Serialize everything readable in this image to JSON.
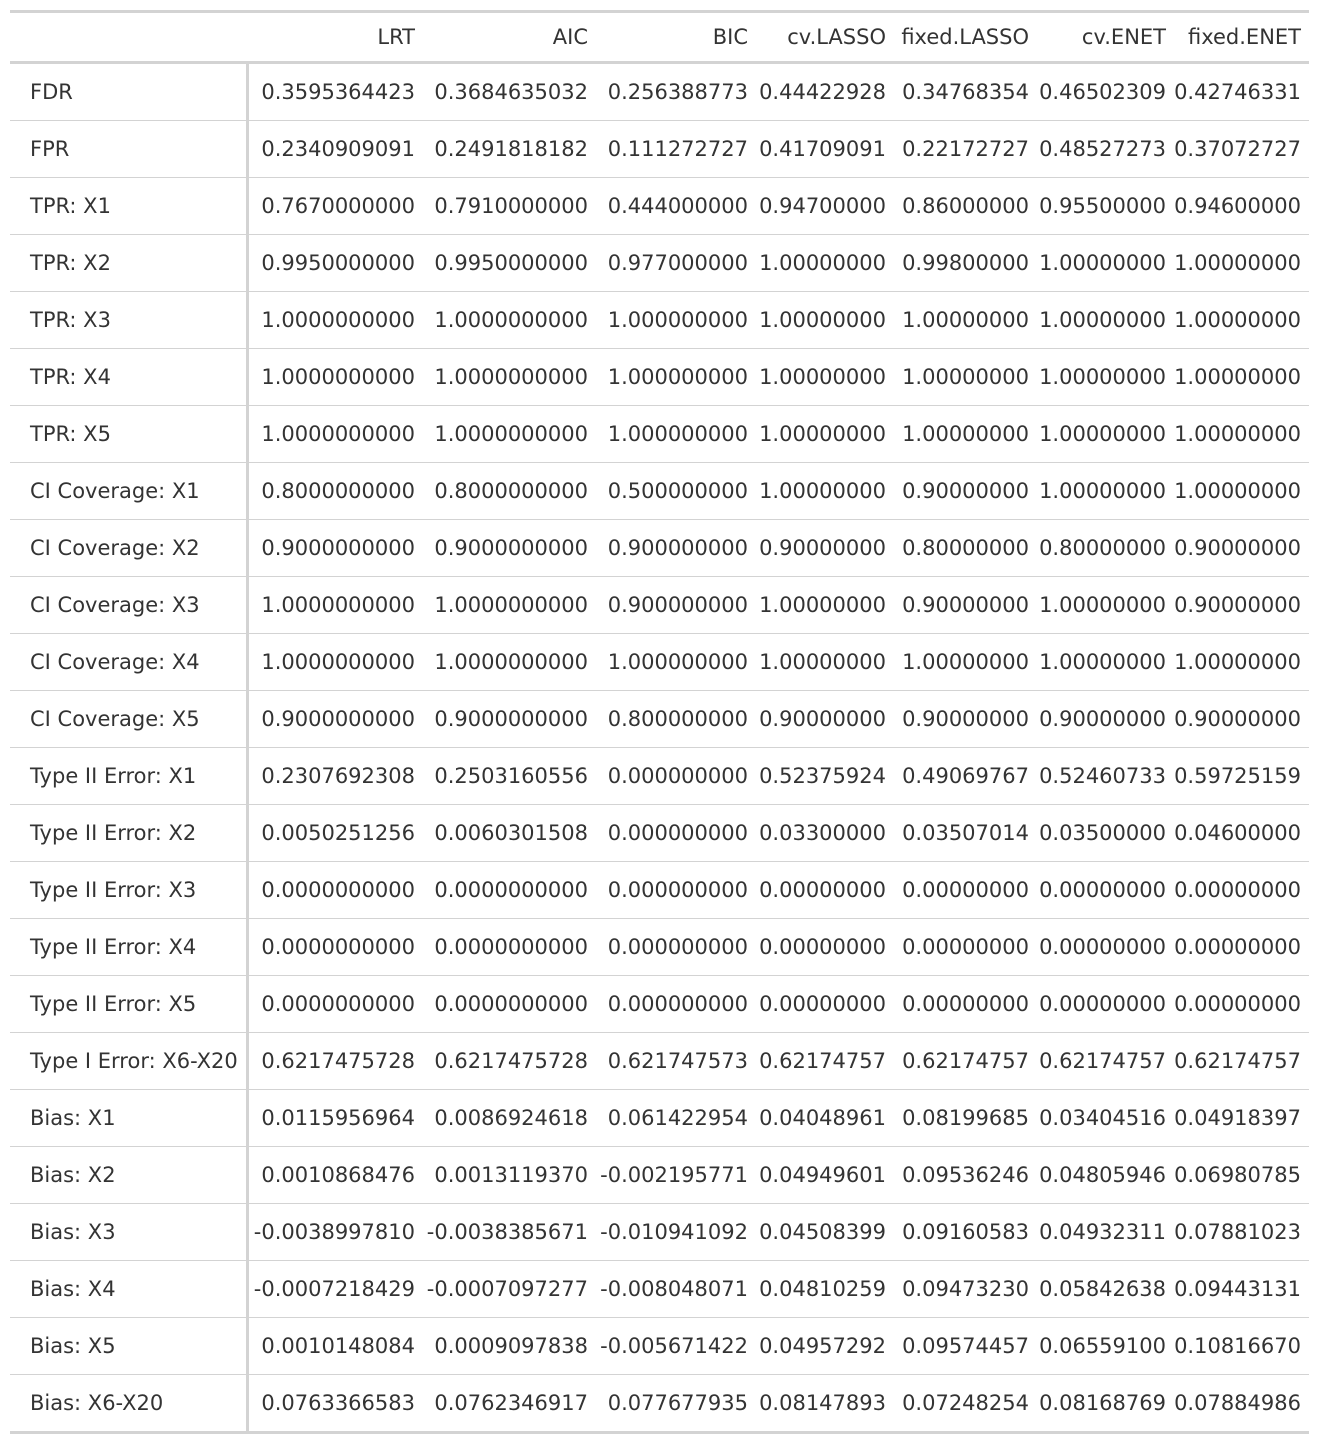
{
  "table": {
    "columns": [
      "",
      "LRT",
      "AIC",
      "BIC",
      "cv.LASSO",
      "fixed.LASSO",
      "cv.ENET",
      "fixed.ENET"
    ],
    "rows": [
      {
        "label": "FDR",
        "values": [
          "0.3595364423",
          "0.3684635032",
          "0.256388773",
          "0.44422928",
          "0.34768354",
          "0.46502309",
          "0.42746331"
        ]
      },
      {
        "label": "FPR",
        "values": [
          "0.2340909091",
          "0.2491818182",
          "0.111272727",
          "0.41709091",
          "0.22172727",
          "0.48527273",
          "0.37072727"
        ]
      },
      {
        "label": "TPR: X1",
        "values": [
          "0.7670000000",
          "0.7910000000",
          "0.444000000",
          "0.94700000",
          "0.86000000",
          "0.95500000",
          "0.94600000"
        ]
      },
      {
        "label": "TPR: X2",
        "values": [
          "0.9950000000",
          "0.9950000000",
          "0.977000000",
          "1.00000000",
          "0.99800000",
          "1.00000000",
          "1.00000000"
        ]
      },
      {
        "label": "TPR: X3",
        "values": [
          "1.0000000000",
          "1.0000000000",
          "1.000000000",
          "1.00000000",
          "1.00000000",
          "1.00000000",
          "1.00000000"
        ]
      },
      {
        "label": "TPR: X4",
        "values": [
          "1.0000000000",
          "1.0000000000",
          "1.000000000",
          "1.00000000",
          "1.00000000",
          "1.00000000",
          "1.00000000"
        ]
      },
      {
        "label": "TPR: X5",
        "values": [
          "1.0000000000",
          "1.0000000000",
          "1.000000000",
          "1.00000000",
          "1.00000000",
          "1.00000000",
          "1.00000000"
        ]
      },
      {
        "label": "CI Coverage: X1",
        "values": [
          "0.8000000000",
          "0.8000000000",
          "0.500000000",
          "1.00000000",
          "0.90000000",
          "1.00000000",
          "1.00000000"
        ]
      },
      {
        "label": "CI Coverage: X2",
        "values": [
          "0.9000000000",
          "0.9000000000",
          "0.900000000",
          "0.90000000",
          "0.80000000",
          "0.80000000",
          "0.90000000"
        ]
      },
      {
        "label": "CI Coverage: X3",
        "values": [
          "1.0000000000",
          "1.0000000000",
          "0.900000000",
          "1.00000000",
          "0.90000000",
          "1.00000000",
          "0.90000000"
        ]
      },
      {
        "label": "CI Coverage: X4",
        "values": [
          "1.0000000000",
          "1.0000000000",
          "1.000000000",
          "1.00000000",
          "1.00000000",
          "1.00000000",
          "1.00000000"
        ]
      },
      {
        "label": "CI Coverage: X5",
        "values": [
          "0.9000000000",
          "0.9000000000",
          "0.800000000",
          "0.90000000",
          "0.90000000",
          "0.90000000",
          "0.90000000"
        ]
      },
      {
        "label": "Type II Error: X1",
        "values": [
          "0.2307692308",
          "0.2503160556",
          "0.000000000",
          "0.52375924",
          "0.49069767",
          "0.52460733",
          "0.59725159"
        ]
      },
      {
        "label": "Type II Error: X2",
        "values": [
          "0.0050251256",
          "0.0060301508",
          "0.000000000",
          "0.03300000",
          "0.03507014",
          "0.03500000",
          "0.04600000"
        ]
      },
      {
        "label": "Type II Error: X3",
        "values": [
          "0.0000000000",
          "0.0000000000",
          "0.000000000",
          "0.00000000",
          "0.00000000",
          "0.00000000",
          "0.00000000"
        ]
      },
      {
        "label": "Type II Error: X4",
        "values": [
          "0.0000000000",
          "0.0000000000",
          "0.000000000",
          "0.00000000",
          "0.00000000",
          "0.00000000",
          "0.00000000"
        ]
      },
      {
        "label": "Type II Error: X5",
        "values": [
          "0.0000000000",
          "0.0000000000",
          "0.000000000",
          "0.00000000",
          "0.00000000",
          "0.00000000",
          "0.00000000"
        ]
      },
      {
        "label": "Type I Error: X6-X20",
        "values": [
          "0.6217475728",
          "0.6217475728",
          "0.621747573",
          "0.62174757",
          "0.62174757",
          "0.62174757",
          "0.62174757"
        ]
      },
      {
        "label": "Bias: X1",
        "values": [
          "0.0115956964",
          "0.0086924618",
          "0.061422954",
          "0.04048961",
          "0.08199685",
          "0.03404516",
          "0.04918397"
        ]
      },
      {
        "label": "Bias: X2",
        "values": [
          "0.0010868476",
          "0.0013119370",
          "-0.002195771",
          "0.04949601",
          "0.09536246",
          "0.04805946",
          "0.06980785"
        ]
      },
      {
        "label": "Bias: X3",
        "values": [
          "-0.0038997810",
          "-0.0038385671",
          "-0.010941092",
          "0.04508399",
          "0.09160583",
          "0.04932311",
          "0.07881023"
        ]
      },
      {
        "label": "Bias: X4",
        "values": [
          "-0.0007218429",
          "-0.0007097277",
          "-0.008048071",
          "0.04810259",
          "0.09473230",
          "0.05842638",
          "0.09443131"
        ]
      },
      {
        "label": "Bias: X5",
        "values": [
          "0.0010148084",
          "0.0009097838",
          "-0.005671422",
          "0.04957292",
          "0.09574457",
          "0.06559100",
          "0.10816670"
        ]
      },
      {
        "label": "Bias: X6-X20",
        "values": [
          "0.0763366583",
          "0.0762346917",
          "0.077677935",
          "0.08147893",
          "0.07248254",
          "0.08168769",
          "0.07884986"
        ]
      }
    ]
  }
}
